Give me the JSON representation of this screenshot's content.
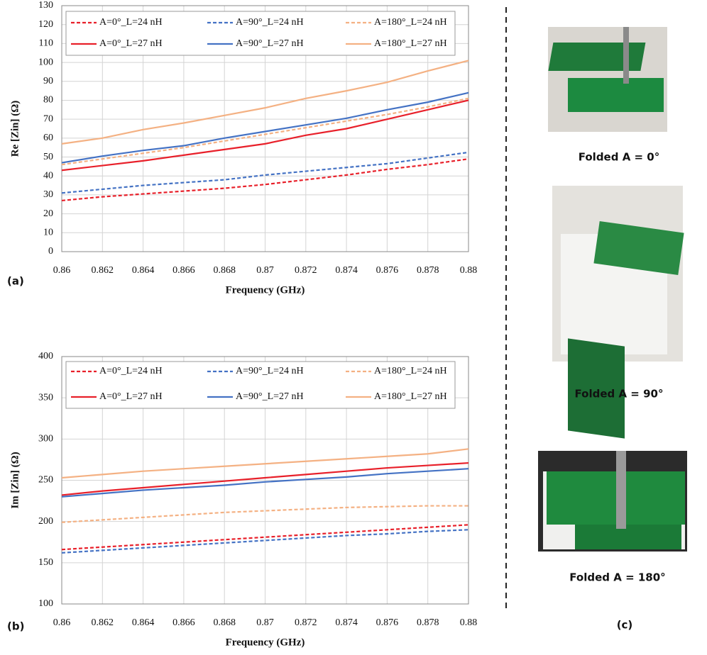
{
  "chart_data": [
    {
      "type": "line",
      "xlabel": "Frequency (GHz)",
      "ylabel": "Re [Zin] (Ω)",
      "x": [
        0.86,
        0.862,
        0.864,
        0.866,
        0.868,
        0.87,
        0.872,
        0.874,
        0.876,
        0.878,
        0.88
      ],
      "xlim": [
        0.86,
        0.88
      ],
      "xticks": [
        0.86,
        0.862,
        0.864,
        0.866,
        0.868,
        0.87,
        0.872,
        0.874,
        0.876,
        0.878,
        0.88
      ],
      "ylim": [
        0,
        130
      ],
      "yticks": [
        0,
        10,
        20,
        30,
        40,
        50,
        60,
        70,
        80,
        90,
        100,
        110,
        120,
        130
      ],
      "grid": true,
      "legend": "upper center",
      "series": [
        {
          "name": "A=0°_L=24 nH",
          "color": "#e8202a",
          "dashed": true,
          "values": [
            27,
            29,
            30.5,
            32,
            33.5,
            35.5,
            38,
            40.5,
            43.5,
            46,
            49
          ]
        },
        {
          "name": "A=90°_L=24 nH",
          "color": "#4472c4",
          "dashed": true,
          "values": [
            31,
            33,
            35,
            36.5,
            38,
            40.5,
            42.5,
            44.5,
            46.5,
            49.5,
            52.5
          ]
        },
        {
          "name": "A=180°_L=24 nH",
          "color": "#f4b183",
          "dashed": true,
          "values": [
            46,
            49,
            52,
            55,
            58.5,
            62,
            65.5,
            69,
            72.5,
            76.5,
            81
          ]
        },
        {
          "name": "A=0°_L=27 nH",
          "color": "#e8202a",
          "dashed": false,
          "values": [
            43,
            45.5,
            48,
            51,
            54,
            57,
            61.5,
            65,
            70,
            75,
            80
          ]
        },
        {
          "name": "A=90°_L=27 nH",
          "color": "#4472c4",
          "dashed": false,
          "values": [
            47,
            50.5,
            53.5,
            56,
            60,
            63.5,
            67,
            70.5,
            75,
            79,
            84
          ]
        },
        {
          "name": "A=180°_L=27 nH",
          "color": "#f4b183",
          "dashed": false,
          "values": [
            57,
            60,
            64.5,
            68,
            72,
            76,
            81,
            85,
            89.5,
            95.5,
            101
          ]
        }
      ]
    },
    {
      "type": "line",
      "xlabel": "Frequency (GHz)",
      "ylabel": "Im [Zin] (Ω)",
      "x": [
        0.86,
        0.862,
        0.864,
        0.866,
        0.868,
        0.87,
        0.872,
        0.874,
        0.876,
        0.878,
        0.88
      ],
      "xlim": [
        0.86,
        0.88
      ],
      "xticks": [
        0.86,
        0.862,
        0.864,
        0.866,
        0.868,
        0.87,
        0.872,
        0.874,
        0.876,
        0.878,
        0.88
      ],
      "ylim": [
        100,
        400
      ],
      "yticks": [
        100,
        150,
        200,
        250,
        300,
        350,
        400
      ],
      "grid": true,
      "legend": "upper center",
      "series": [
        {
          "name": "A=0°_L=24 nH",
          "color": "#e8202a",
          "dashed": true,
          "values": [
            166,
            169,
            172,
            175,
            178,
            181,
            184,
            187,
            190,
            193,
            196
          ]
        },
        {
          "name": "A=90°_L=24 nH",
          "color": "#4472c4",
          "dashed": true,
          "values": [
            162,
            165,
            168,
            171,
            174,
            177,
            180,
            183,
            185,
            188,
            190
          ]
        },
        {
          "name": "A=180°_L=24 nH",
          "color": "#f4b183",
          "dashed": true,
          "values": [
            199,
            202,
            205,
            208,
            211,
            213,
            215,
            217,
            218,
            219,
            219
          ]
        },
        {
          "name": "A=0°_L=27 nH",
          "color": "#e8202a",
          "dashed": false,
          "values": [
            232,
            237,
            241,
            245,
            249,
            253,
            257,
            261,
            265,
            268,
            271
          ]
        },
        {
          "name": "A=90°_L=27 nH",
          "color": "#4472c4",
          "dashed": false,
          "values": [
            230,
            234,
            238,
            241,
            244,
            248,
            251,
            254,
            258,
            261,
            264
          ]
        },
        {
          "name": "A=180°_L=27 nH",
          "color": "#f4b183",
          "dashed": false,
          "values": [
            253,
            257,
            261,
            264,
            267,
            270,
            273,
            276,
            279,
            282,
            288
          ]
        }
      ]
    }
  ],
  "panel_labels": [
    "(a)",
    "(b)",
    "(c)"
  ],
  "photos": [
    {
      "caption": "Folded A = 0°"
    },
    {
      "caption": "Folded A = 90°"
    },
    {
      "caption": "Folded A = 180°"
    }
  ]
}
